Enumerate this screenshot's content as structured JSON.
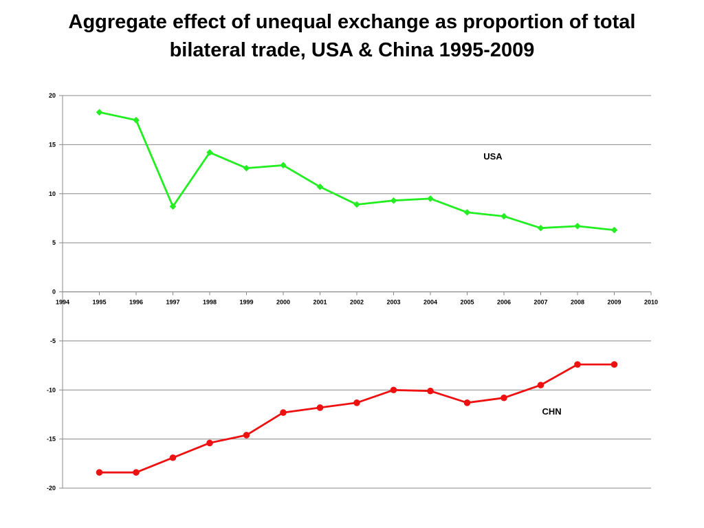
{
  "chart_data": {
    "type": "line",
    "title_lines": [
      "Aggregate effect of unequal exchange as proportion of total",
      "bilateral trade, USA & China 1995-2009"
    ],
    "xlabel": "",
    "ylabel": "",
    "xlim": [
      1994,
      2010
    ],
    "ylim": [
      -20,
      20
    ],
    "x_ticks": [
      "1994",
      "1995",
      "1996",
      "1997",
      "1998",
      "1999",
      "2000",
      "2001",
      "2002",
      "2003",
      "2004",
      "2005",
      "2006",
      "2007",
      "2008",
      "2009",
      "2010"
    ],
    "y_ticks": [
      "20",
      "15",
      "10",
      "5",
      "0",
      "-5",
      "-10",
      "-15",
      "-20"
    ],
    "grid": true,
    "legend": "none",
    "x": [
      1995,
      1996,
      1997,
      1998,
      1999,
      2000,
      2001,
      2002,
      2003,
      2004,
      2005,
      2006,
      2007,
      2008,
      2009
    ],
    "series": [
      {
        "name": "USA",
        "color": "#22ee22",
        "marker": "diamond",
        "label": "USA",
        "values": [
          18.3,
          17.5,
          8.7,
          14.2,
          12.6,
          12.9,
          10.7,
          8.9,
          9.3,
          9.5,
          8.1,
          7.7,
          6.5,
          6.7,
          6.3
        ]
      },
      {
        "name": "CHN",
        "color": "#ee1111",
        "marker": "circle",
        "label": "CHN",
        "values": [
          -18.4,
          -18.4,
          -16.9,
          -15.4,
          -14.6,
          -12.3,
          -11.8,
          -11.3,
          -10.0,
          -10.1,
          -11.3,
          -10.8,
          -9.5,
          -7.4,
          -7.4
        ]
      }
    ],
    "annotations": [
      {
        "text": "USA",
        "x": 2005.7,
        "y": 13.5
      },
      {
        "text": "CHN",
        "x": 2007.3,
        "y": -12.5
      }
    ]
  }
}
